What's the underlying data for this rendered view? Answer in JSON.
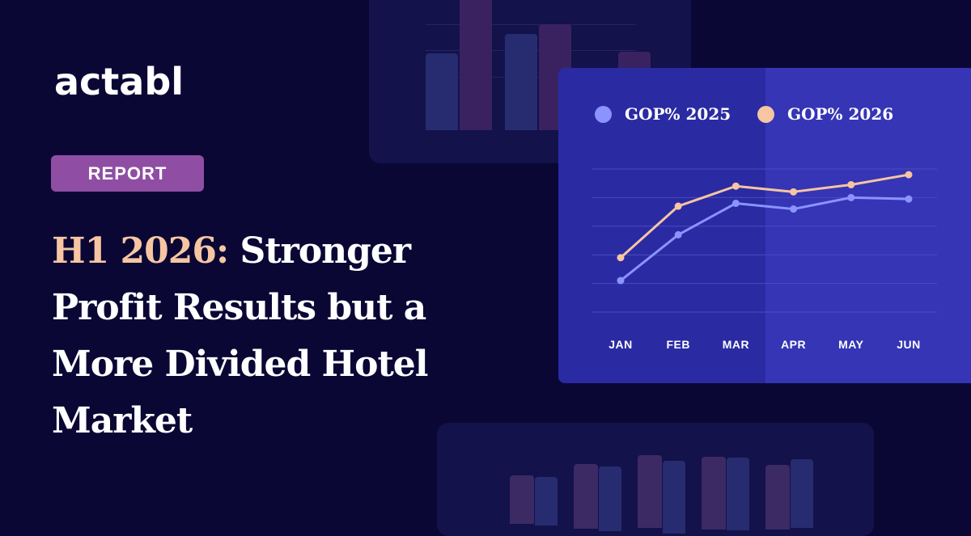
{
  "brand": {
    "logo_text": "actabl"
  },
  "badge": {
    "label": "REPORT"
  },
  "headline": {
    "accent": "H1 2026:",
    "rest": " Stronger Profit Results but a More Divided Hotel Market"
  },
  "colors": {
    "background": "#0a0735",
    "card": "#2a2aa3",
    "series_2025": "#8b93ff",
    "series_2026": "#f6c5a2",
    "accent_text": "#f6c5a2",
    "badge": "#8f4ea3"
  },
  "chart_data": {
    "type": "line",
    "categories": [
      "JAN",
      "FEB",
      "MAR",
      "APR",
      "MAY",
      "JUN"
    ],
    "series": [
      {
        "name": "GOP% 2025",
        "values": [
          11,
          27,
          38,
          36,
          40,
          39.5
        ]
      },
      {
        "name": "GOP% 2026",
        "values": [
          19,
          37,
          44,
          42,
          44.5,
          48
        ]
      }
    ],
    "ylim": [
      0,
      50
    ],
    "grid": true,
    "legend": "top",
    "xlabel": "",
    "ylabel": ""
  },
  "decor_bars_top": {
    "colors": [
      "#272c70",
      "#3a2261",
      "#272c70",
      "#3a2261",
      "#3a2261"
    ]
  },
  "decor_bars_bottom": {
    "colors": [
      "#3c2a64",
      "#272c70"
    ]
  }
}
